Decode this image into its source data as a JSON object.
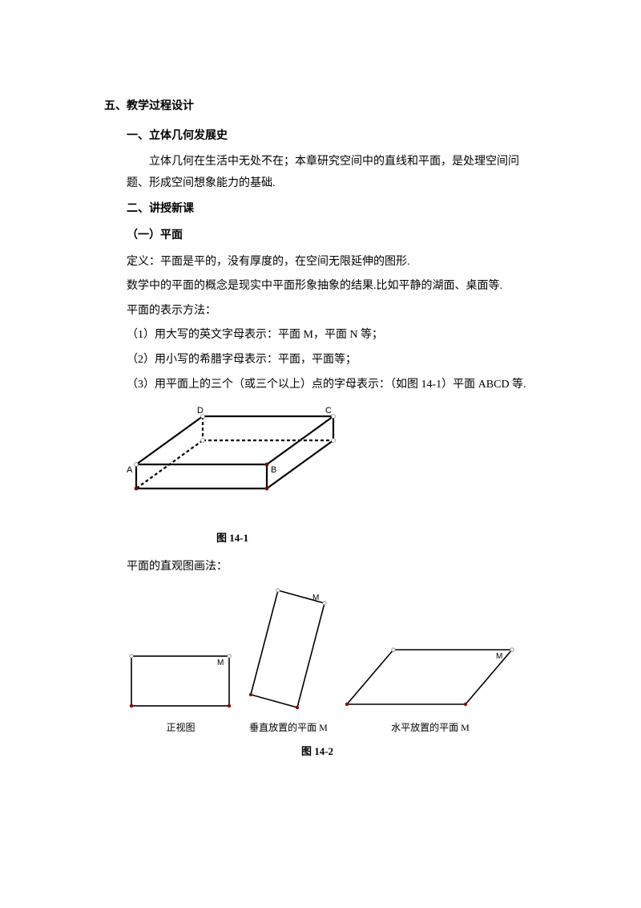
{
  "section5": {
    "title": "五、教学过程设计",
    "sub1": {
      "title": "一、立体几何发展史",
      "paragraph": "立体几何在生活中无处不在；本章研究空间中的直线和平面，是处理空间问题、形成空间想象能力的基础."
    },
    "sub2": {
      "title": "二、讲授新课",
      "part1": {
        "title": "（一）平面",
        "def": "定义：平面是平的，没有厚度的，在空间无限延伸的图形.",
        "explain": "数学中的平面的概念是现实中平面形象抽象的结果.比如平静的湖面、桌面等.",
        "methods_title": "平面的表示方法：",
        "m1": "（1）用大写的英文字母表示：平面 M，平面 N 等；",
        "m2": "（2）用小写的希腊字母表示：平面，平面等；",
        "m3": "（3）用平面上的三个（或三个以上）点的字母表示：（如图 14-1）平面 ABCD 等.",
        "fig1": {
          "caption": "图 14-1",
          "labels": {
            "A": "A",
            "B": "B",
            "C": "C",
            "D": "D"
          },
          "stroke": "#000000",
          "stroke_width": 2.2,
          "dash": "4,3",
          "point_fill": "#ffffff",
          "point_stroke": "#808080",
          "point_r": 2.4,
          "corner_fill": "#8b0000",
          "text_size": 11
        },
        "intuitive_title": "平面的直观图画法：",
        "fig2": {
          "caption": "图 14-2",
          "sub1_label": "正视图",
          "sub2_label": "垂直放置的平面 M",
          "sub3_label": "水平放置的平面 M",
          "M": "M",
          "stroke": "#000000",
          "stroke_width": 1.6,
          "point_fill": "#ffffff",
          "point_stroke": "#808080",
          "point_r": 2.2,
          "corner_fill": "#8b0000",
          "text_size": 10
        }
      }
    }
  }
}
